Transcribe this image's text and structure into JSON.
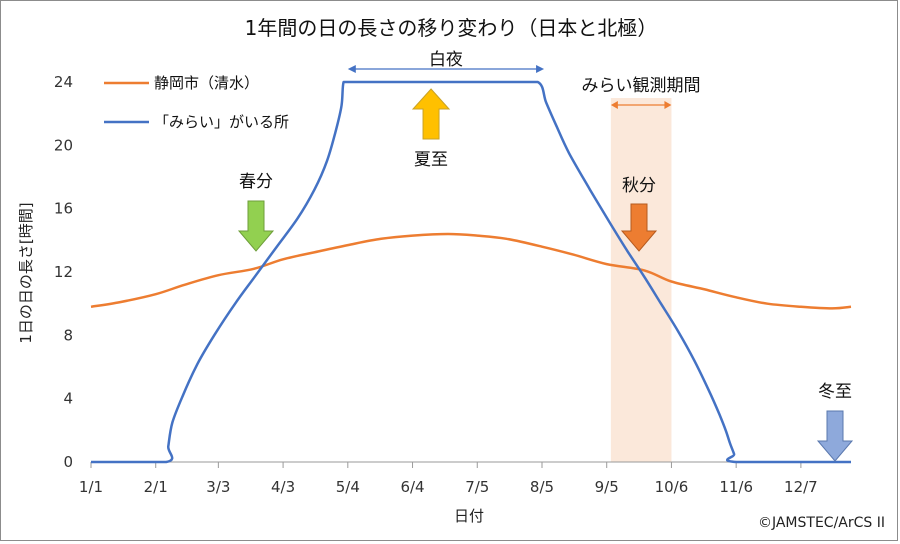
{
  "chart_data": {
    "type": "line",
    "title": "1年間の日の長さの移り変わり（日本と北極）",
    "xlabel": "日付",
    "ylabel": "1日の日の長さ[時間]",
    "ylim": [
      0,
      24
    ],
    "yticks": [
      "0",
      "4",
      "8",
      "12",
      "16",
      "20",
      "24"
    ],
    "xlim": [
      1,
      365
    ],
    "xtick_labels": [
      "1/1",
      "2/1",
      "3/3",
      "4/3",
      "5/4",
      "6/4",
      "7/5",
      "8/5",
      "9/5",
      "10/6",
      "11/6",
      "12/7"
    ],
    "xtick_days": [
      1,
      32,
      62,
      93,
      124,
      155,
      186,
      217,
      248,
      279,
      310,
      341
    ],
    "grid": false,
    "legend_position": "top-left",
    "series": [
      {
        "name": "静岡市（清水）",
        "color": "#ED7D31",
        "x": [
          1,
          15,
          32,
          46,
          62,
          79,
          93,
          110,
          124,
          140,
          155,
          172,
          186,
          200,
          217,
          232,
          248,
          266,
          279,
          295,
          310,
          325,
          341,
          356,
          365
        ],
        "y": [
          9.8,
          10.1,
          10.6,
          11.2,
          11.8,
          12.2,
          12.8,
          13.3,
          13.7,
          14.1,
          14.3,
          14.4,
          14.3,
          14.1,
          13.6,
          13.1,
          12.5,
          12.1,
          11.4,
          10.9,
          10.4,
          10.0,
          9.8,
          9.7,
          9.8
        ]
      },
      {
        "name": "「みらい」がいる所",
        "color": "#4472C4",
        "x": [
          1,
          37,
          38,
          40,
          45,
          52,
          60,
          70,
          80,
          90,
          100,
          108,
          114,
          118,
          121,
          122,
          125,
          140,
          160,
          180,
          200,
          215,
          219,
          224,
          230,
          240,
          250,
          258,
          266,
          274,
          282,
          290,
          297,
          302,
          305,
          307,
          309,
          310,
          365
        ],
        "y": [
          0,
          0,
          1.0,
          2.5,
          4.2,
          6.2,
          8.0,
          10.0,
          11.8,
          13.6,
          15.4,
          17.2,
          19.0,
          20.8,
          22.5,
          24,
          24,
          24,
          24,
          24,
          24,
          24,
          22.7,
          21.2,
          19.5,
          17.2,
          15.0,
          13.3,
          11.7,
          10.0,
          8.3,
          6.4,
          4.5,
          3.0,
          2.0,
          1.2,
          0.5,
          0,
          0
        ]
      }
    ],
    "annotations": [
      {
        "text": "白夜",
        "type": "bracket",
        "from_day": 124,
        "to_day": 218,
        "y": 24
      },
      {
        "text": "夏至",
        "type": "arrow-up",
        "day": 172,
        "color": "#FFC000"
      },
      {
        "text": "春分",
        "type": "arrow-down",
        "day": 79,
        "color": "#92D050"
      },
      {
        "text": "秋分",
        "type": "arrow-down",
        "day": 266,
        "color": "#ED7D31"
      },
      {
        "text": "冬至",
        "type": "arrow-down",
        "day": 356,
        "color": "#8EA9DB"
      },
      {
        "text": "みらい観測期間",
        "type": "band",
        "from_day": 250,
        "to_day": 279,
        "color": "#FBE5D6"
      }
    ],
    "credit": "©JAMSTEC/ArCS II"
  }
}
